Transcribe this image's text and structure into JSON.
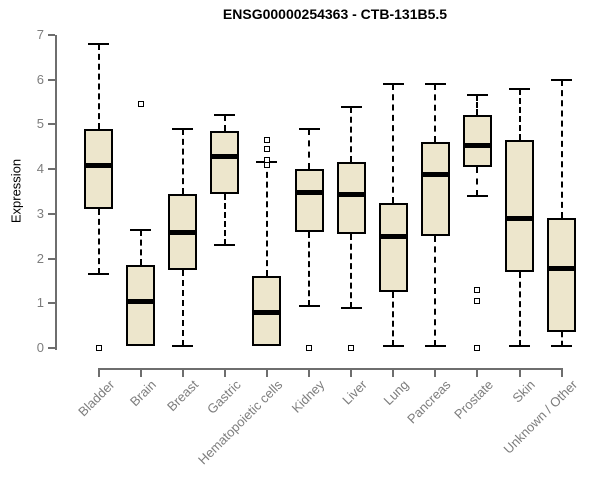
{
  "chart_data": {
    "type": "box",
    "title": "ENSG00000254363 - CTB-131B5.5",
    "xlabel": "",
    "ylabel": "Expression",
    "ylim": [
      0,
      7
    ],
    "yticks": [
      0,
      1,
      2,
      3,
      4,
      5,
      6,
      7
    ],
    "grid": false,
    "legend": "none",
    "x_tick_rotation": -45,
    "categories": [
      "Bladder",
      "Brain",
      "Breast",
      "Gastric",
      "Hematopoietic cells",
      "Kidney",
      "Liver",
      "Lung",
      "Pancreas",
      "Prostate",
      "Skin",
      "Unknown / Other"
    ],
    "boxes": [
      {
        "category": "Bladder",
        "whisker_low": 1.65,
        "q1": 3.1,
        "median": 4.1,
        "q3": 4.9,
        "whisker_high": 6.8,
        "outliers": [
          0
        ]
      },
      {
        "category": "Brain",
        "whisker_low": 0.05,
        "q1": 0.05,
        "median": 1.05,
        "q3": 1.85,
        "whisker_high": 2.65,
        "outliers": [
          5.45
        ]
      },
      {
        "category": "Breast",
        "whisker_low": 0.05,
        "q1": 1.75,
        "median": 2.6,
        "q3": 3.45,
        "whisker_high": 4.9,
        "outliers": []
      },
      {
        "category": "Gastric",
        "whisker_low": 2.3,
        "q1": 3.45,
        "median": 4.3,
        "q3": 4.85,
        "whisker_high": 5.2,
        "outliers": []
      },
      {
        "category": "Hematopoietic cells",
        "whisker_low": 0.05,
        "q1": 0.05,
        "median": 0.8,
        "q3": 1.6,
        "whisker_high": 4.15,
        "outliers": [
          4.65,
          4.45,
          4.2,
          4.1
        ]
      },
      {
        "category": "Kidney",
        "whisker_low": 0.95,
        "q1": 2.6,
        "median": 3.5,
        "q3": 4.0,
        "whisker_high": 4.9,
        "outliers": [
          0
        ]
      },
      {
        "category": "Liver",
        "whisker_low": 0.9,
        "q1": 2.55,
        "median": 3.45,
        "q3": 4.15,
        "whisker_high": 5.4,
        "outliers": [
          0
        ]
      },
      {
        "category": "Lung",
        "whisker_low": 0.05,
        "q1": 1.25,
        "median": 2.5,
        "q3": 3.25,
        "whisker_high": 5.9,
        "outliers": []
      },
      {
        "category": "Pancreas",
        "whisker_low": 0.05,
        "q1": 2.5,
        "median": 3.9,
        "q3": 4.6,
        "whisker_high": 5.9,
        "outliers": []
      },
      {
        "category": "Prostate",
        "whisker_low": 3.4,
        "q1": 4.05,
        "median": 4.55,
        "q3": 5.2,
        "whisker_high": 5.65,
        "outliers": [
          1.3,
          1.05,
          0
        ]
      },
      {
        "category": "Skin",
        "whisker_low": 0.05,
        "q1": 1.7,
        "median": 2.9,
        "q3": 4.65,
        "whisker_high": 5.8,
        "outliers": []
      },
      {
        "category": "Unknown / Other",
        "whisker_low": 0.05,
        "q1": 0.35,
        "median": 1.8,
        "q3": 2.9,
        "whisker_high": 6.0,
        "outliers": []
      }
    ],
    "colors": {
      "background": "#ffffff",
      "box_fill": "#EDE6CC",
      "box_border": "#000000",
      "median": "#000000",
      "whisker": "#000000",
      "outlier": "#000000",
      "axis": "#6e6e6e",
      "tick_label": "#7d7d7d",
      "title": "#000000"
    }
  }
}
